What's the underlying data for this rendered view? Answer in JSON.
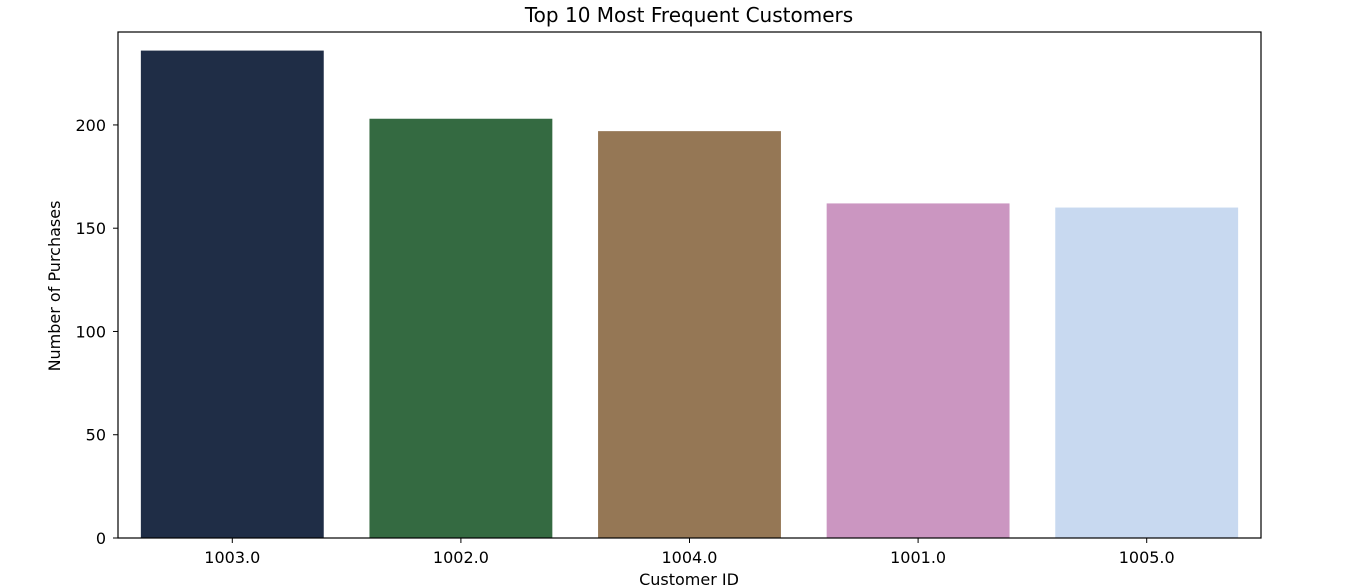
{
  "chart_data": {
    "type": "bar",
    "title": "Top 10 Most Frequent Customers",
    "xlabel": "Customer ID",
    "ylabel": "Number of Purchases",
    "categories": [
      "1003.0",
      "1002.0",
      "1004.0",
      "1001.0",
      "1005.0"
    ],
    "values": [
      236,
      203,
      197,
      162,
      160
    ],
    "colors": [
      "#1f2d46",
      "#346a41",
      "#957755",
      "#cb96c1",
      "#c8d9f0"
    ],
    "ylim": [
      0,
      245
    ],
    "yticks": [
      0,
      50,
      100,
      150,
      200
    ],
    "grid": false,
    "legend": "none"
  }
}
